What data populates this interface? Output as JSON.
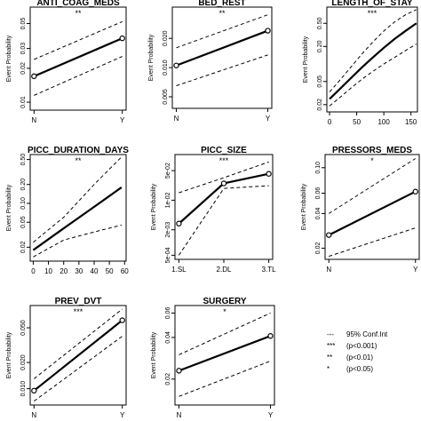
{
  "chart_data": [
    {
      "type": "line",
      "title": "ANTI_COAG_MEDS",
      "ylabel": "Event Probability",
      "sig": "**",
      "log_y": true,
      "x_kind": "categorical",
      "x_ticks": [
        "N",
        "Y"
      ],
      "y_ticks": [
        {
          "v": 0.01,
          "label": "0.01"
        },
        {
          "v": 0.02,
          "label": "0.02"
        },
        {
          "v": 0.03,
          "label": "0.03"
        },
        {
          "v": 0.05,
          "label": "0.05"
        }
      ],
      "ylim": [
        0.0085,
        0.07
      ],
      "x": [
        0,
        1
      ],
      "y": [
        0.017,
        0.037
      ],
      "lower": [
        0.0115,
        0.0255
      ],
      "upper": [
        0.024,
        0.052
      ]
    },
    {
      "type": "line",
      "title": "BED_REST",
      "ylabel": "Event Probability",
      "sig": "**",
      "log_y": true,
      "x_kind": "categorical",
      "x_ticks": [
        "N",
        "Y"
      ],
      "y_ticks": [
        {
          "v": 0.005,
          "label": "0.005"
        },
        {
          "v": 0.01,
          "label": "0.010"
        },
        {
          "v": 0.02,
          "label": "0.020"
        }
      ],
      "ylim": [
        0.0038,
        0.042
      ],
      "x": [
        0,
        1
      ],
      "y": [
        0.0105,
        0.024
      ],
      "lower": [
        0.0065,
        0.0135
      ],
      "upper": [
        0.016,
        0.035
      ]
    },
    {
      "type": "line",
      "title": "LENGTH_OF_STAY",
      "ylabel": "Event Probability",
      "sig": "***",
      "log_y": true,
      "x_kind": "numeric",
      "x_ticks": [
        0,
        50,
        100,
        150
      ],
      "xlim": [
        -5,
        162
      ],
      "y_ticks": [
        {
          "v": 0.02,
          "label": "0.02"
        },
        {
          "v": 0.05,
          "label": "0.05"
        },
        {
          "v": 0.2,
          "label": "0.20"
        },
        {
          "v": 0.5,
          "label": "0.50"
        }
      ],
      "ylim": [
        0.015,
        0.95
      ],
      "x": [
        0,
        20,
        40,
        60,
        80,
        100,
        120,
        140,
        160
      ],
      "y": [
        0.025,
        0.038,
        0.058,
        0.088,
        0.13,
        0.19,
        0.27,
        0.37,
        0.5
      ],
      "lower": [
        0.019,
        0.027,
        0.039,
        0.055,
        0.075,
        0.1,
        0.13,
        0.17,
        0.22
      ],
      "upper": [
        0.033,
        0.054,
        0.09,
        0.15,
        0.24,
        0.37,
        0.53,
        0.7,
        0.86
      ]
    },
    {
      "type": "line",
      "title": "PICC_DURATION_DAYS",
      "ylabel": "Event Probability",
      "sig": "**",
      "log_y": true,
      "x_kind": "numeric",
      "x_ticks": [
        0,
        10,
        20,
        30,
        40,
        50,
        60
      ],
      "xlim": [
        -2,
        61
      ],
      "y_ticks": [
        {
          "v": 0.02,
          "label": "0.02"
        },
        {
          "v": 0.05,
          "label": "0.05"
        },
        {
          "v": 0.1,
          "label": "0.10"
        },
        {
          "v": 0.2,
          "label": "0.20"
        },
        {
          "v": 0.5,
          "label": "0.50"
        }
      ],
      "ylim": [
        0.012,
        0.6
      ],
      "x": [
        0,
        20,
        40,
        58
      ],
      "y": [
        0.018,
        0.04,
        0.088,
        0.18
      ],
      "lower": [
        0.014,
        0.026,
        0.035,
        0.045
      ],
      "upper": [
        0.024,
        0.06,
        0.2,
        0.55
      ]
    },
    {
      "type": "line",
      "title": "PICC_SIZE",
      "ylabel": "Event Probability",
      "sig": "***",
      "log_y": true,
      "x_kind": "categorical",
      "x_ticks": [
        "1.SL",
        "2.DL",
        "3.TL"
      ],
      "y_ticks": [
        {
          "v": 0.0005,
          "label": "5e-04"
        },
        {
          "v": 0.002,
          "label": "2e-03"
        },
        {
          "v": 0.01,
          "label": "1e-02"
        },
        {
          "v": 0.05,
          "label": "5e-02"
        }
      ],
      "ylim": [
        0.0004,
        0.12
      ],
      "x": [
        0,
        1,
        2
      ],
      "y": [
        0.0028,
        0.025,
        0.042
      ],
      "lower": [
        0.0005,
        0.019,
        0.022
      ],
      "upper": [
        0.015,
        0.034,
        0.08
      ]
    },
    {
      "type": "line",
      "title": "PRESSORS_MEDS",
      "ylabel": "Event Probability",
      "sig": "*",
      "log_y": true,
      "x_kind": "categorical",
      "x_ticks": [
        "N",
        "Y"
      ],
      "y_ticks": [
        {
          "v": 0.02,
          "label": "0.02"
        },
        {
          "v": 0.04,
          "label": "0.04"
        },
        {
          "v": 0.06,
          "label": "0.06"
        },
        {
          "v": 0.1,
          "label": "0.10"
        }
      ],
      "ylim": [
        0.016,
        0.13
      ],
      "x": [
        0,
        1
      ],
      "y": [
        0.026,
        0.062
      ],
      "lower": [
        0.017,
        0.03
      ],
      "upper": [
        0.04,
        0.12
      ]
    },
    {
      "type": "line",
      "title": "PREV_DVT",
      "ylabel": "Event Probability",
      "sig": "***",
      "log_y": true,
      "x_kind": "categorical",
      "x_ticks": [
        "N",
        "Y"
      ],
      "y_ticks": [
        {
          "v": 0.01,
          "label": "0.010"
        },
        {
          "v": 0.02,
          "label": "0.020"
        },
        {
          "v": 0.05,
          "label": "0.050"
        }
      ],
      "ylim": [
        0.0065,
        0.09
      ],
      "x": [
        0,
        1
      ],
      "y": [
        0.0095,
        0.061
      ],
      "lower": [
        0.0072,
        0.04
      ],
      "upper": [
        0.013,
        0.082
      ]
    },
    {
      "type": "line",
      "title": "SURGERY",
      "ylabel": "Event Probability",
      "sig": "*",
      "log_y": true,
      "x_kind": "categorical",
      "x_ticks": [
        "N",
        "Y"
      ],
      "y_ticks": [
        {
          "v": 0.02,
          "label": "0.02"
        },
        {
          "v": 0.04,
          "label": "0.04"
        },
        {
          "v": 0.06,
          "label": "0.06"
        }
      ],
      "ylim": [
        0.013,
        0.068
      ],
      "x": [
        0,
        1
      ],
      "y": [
        0.023,
        0.041
      ],
      "lower": [
        0.015,
        0.027
      ],
      "upper": [
        0.03,
        0.06
      ]
    }
  ],
  "legend": [
    {
      "symbol": "---",
      "label": "95% Conf.Int"
    },
    {
      "symbol": "***",
      "label": "(p<0.001)"
    },
    {
      "symbol": "**",
      "label": "(p<0.01)"
    },
    {
      "symbol": "*",
      "label": "(p<0.05)"
    }
  ]
}
